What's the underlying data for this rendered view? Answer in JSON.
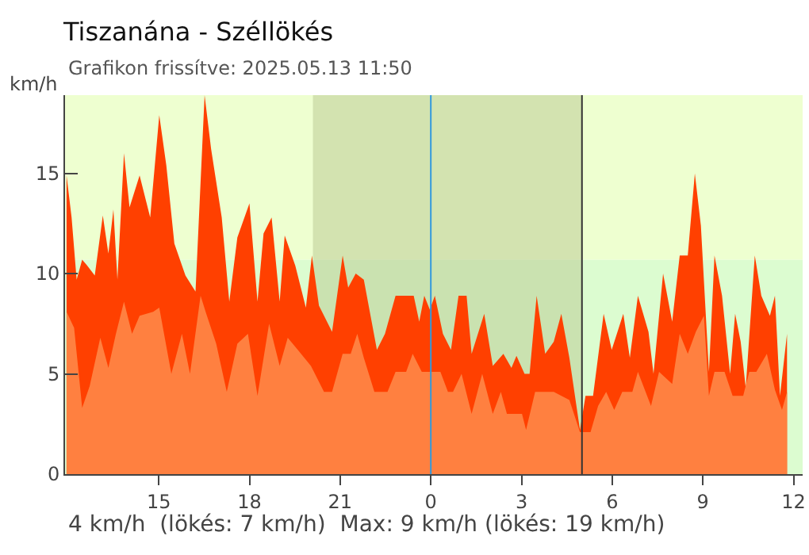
{
  "chart_data": {
    "type": "area",
    "title": "Tiszanána - Széllökés",
    "subtitle": "Grafikon frissítve: 2025.05.13 11:50",
    "ylabel": "km/h",
    "annotations": [
      "4 km/h  (lökés: 7 km/h)  Max: 9 km/h (lökés: 19 km/h)"
    ],
    "series": [
      {
        "color": "#ff4000",
        "x": [
          "2025-05-12T11:57",
          "2025-05-12T12:07",
          "2025-05-12T12:17",
          "2025-05-12T12:28",
          "2025-05-12T12:38",
          "2025-05-12T12:53",
          "2025-05-12T13:09",
          "2025-05-12T13:20",
          "2025-05-12T13:30",
          "2025-05-12T13:38",
          "2025-05-12T13:51",
          "2025-05-12T14:02",
          "2025-05-12T14:22",
          "2025-05-12T14:43",
          "2025-05-12T15:01",
          "2025-05-12T15:15",
          "2025-05-12T15:31",
          "2025-05-12T15:53",
          "2025-05-12T16:13",
          "2025-05-12T16:31",
          "2025-05-12T16:44",
          "2025-05-12T17:05",
          "2025-05-12T17:20",
          "2025-05-12T17:36",
          "2025-05-12T18:00",
          "2025-05-12T18:16",
          "2025-05-12T18:28",
          "2025-05-12T18:44",
          "2025-05-12T19:00",
          "2025-05-12T19:10",
          "2025-05-12T19:31",
          "2025-05-12T19:52",
          "2025-05-12T20:04",
          "2025-05-12T20:18",
          "2025-05-12T20:44",
          "2025-05-12T21:05",
          "2025-05-12T21:16",
          "2025-05-12T21:31",
          "2025-05-12T21:47",
          "2025-05-12T22:13",
          "2025-05-12T22:29",
          "2025-05-12T22:50",
          "2025-05-12T23:05",
          "2025-05-12T23:26",
          "2025-05-12T23:37",
          "2025-05-12T23:47",
          "2025-05-12T23:58",
          "2025-05-13T00:08",
          "2025-05-13T00:24",
          "2025-05-13T00:40",
          "2025-05-13T00:55",
          "2025-05-13T01:11",
          "2025-05-13T01:21",
          "2025-05-13T01:46",
          "2025-05-13T02:03",
          "2025-05-13T02:24",
          "2025-05-13T02:40",
          "2025-05-13T02:50",
          "2025-05-13T03:06",
          "2025-05-13T03:16",
          "2025-05-13T03:30",
          "2025-05-13T03:47",
          "2025-05-13T04:04",
          "2025-05-13T04:19",
          "2025-05-13T04:35",
          "2025-05-13T04:56",
          "2025-05-13T05:07",
          "2025-05-13T05:22",
          "2025-05-13T05:43",
          "2025-05-13T05:59",
          "2025-05-13T06:22",
          "2025-05-13T06:35",
          "2025-05-13T06:51",
          "2025-05-13T07:12",
          "2025-05-13T07:22",
          "2025-05-13T07:41",
          "2025-05-13T07:59",
          "2025-05-13T08:14",
          "2025-05-13T08:30",
          "2025-05-13T08:44",
          "2025-05-13T08:56",
          "2025-05-13T09:12",
          "2025-05-13T09:23",
          "2025-05-13T09:38",
          "2025-05-13T09:54",
          "2025-05-13T10:04",
          "2025-05-13T10:15",
          "2025-05-13T10:25",
          "2025-05-13T10:43",
          "2025-05-13T10:56",
          "2025-05-13T11:13",
          "2025-05-13T11:23",
          "2025-05-13T11:33",
          "2025-05-13T11:47"
        ],
        "values": [
          14.9,
          12.8,
          9.7,
          10.7,
          10.4,
          9.9,
          12.9,
          11.0,
          13.2,
          9.7,
          16.0,
          13.3,
          14.9,
          12.8,
          17.9,
          15.4,
          11.5,
          9.9,
          9.1,
          18.9,
          16.2,
          12.8,
          8.6,
          11.8,
          13.5,
          8.6,
          12.0,
          12.8,
          8.6,
          11.9,
          10.4,
          8.3,
          10.9,
          8.4,
          7.1,
          10.9,
          9.3,
          10.0,
          9.7,
          6.2,
          7.0,
          8.9,
          8.9,
          8.9,
          7.6,
          8.9,
          8.2,
          8.9,
          7.0,
          6.2,
          8.9,
          8.9,
          6.0,
          8.0,
          5.4,
          6.0,
          5.3,
          5.9,
          5.0,
          5.0,
          8.9,
          6.0,
          6.6,
          8.0,
          5.8,
          2.2,
          3.9,
          3.9,
          8.0,
          6.2,
          8.0,
          5.8,
          8.9,
          7.1,
          5.0,
          10.0,
          7.6,
          10.9,
          10.9,
          15.0,
          12.4,
          5.1,
          10.9,
          8.9,
          5.0,
          8.0,
          6.6,
          4.3,
          10.9,
          8.9,
          7.9,
          8.9,
          3.9,
          7.0
        ]
      },
      {
        "color": "#ff8040",
        "x": [
          "2025-05-12T11:57",
          "2025-05-12T12:12",
          "2025-05-12T12:28",
          "2025-05-12T12:43",
          "2025-05-12T13:04",
          "2025-05-12T13:20",
          "2025-05-12T13:35",
          "2025-05-12T13:51",
          "2025-05-12T14:07",
          "2025-05-12T14:22",
          "2025-05-12T14:49",
          "2025-05-12T15:01",
          "2025-05-12T15:25",
          "2025-05-12T15:46",
          "2025-05-12T16:02",
          "2025-05-12T16:23",
          "2025-05-12T16:33",
          "2025-05-12T16:54",
          "2025-05-12T17:15",
          "2025-05-12T17:36",
          "2025-05-12T17:57",
          "2025-05-12T18:16",
          "2025-05-12T18:39",
          "2025-05-12T19:00",
          "2025-05-12T19:16",
          "2025-05-12T19:36",
          "2025-05-12T20:02",
          "2025-05-12T20:08",
          "2025-05-12T20:28",
          "2025-05-12T20:44",
          "2025-05-12T21:05",
          "2025-05-12T21:21",
          "2025-05-12T21:34",
          "2025-05-12T21:47",
          "2025-05-12T22:08",
          "2025-05-12T22:34",
          "2025-05-12T22:50",
          "2025-05-12T23:11",
          "2025-05-12T23:24",
          "2025-05-12T23:42",
          "2025-05-13T00:19",
          "2025-05-13T00:34",
          "2025-05-13T00:44",
          "2025-05-13T01:01",
          "2025-05-13T01:21",
          "2025-05-13T01:42",
          "2025-05-13T02:03",
          "2025-05-13T02:19",
          "2025-05-13T02:31",
          "2025-05-13T03:01",
          "2025-05-13T03:09",
          "2025-05-13T03:27",
          "2025-05-13T04:04",
          "2025-05-13T04:35",
          "2025-05-13T04:56",
          "2025-05-13T05:17",
          "2025-05-13T05:32",
          "2025-05-13T05:48",
          "2025-05-13T06:04",
          "2025-05-13T06:20",
          "2025-05-13T06:40",
          "2025-05-13T06:51",
          "2025-05-13T07:17",
          "2025-05-13T07:33",
          "2025-05-13T07:59",
          "2025-05-13T08:14",
          "2025-05-13T08:30",
          "2025-05-13T08:46",
          "2025-05-13T09:02",
          "2025-05-13T09:12",
          "2025-05-13T09:23",
          "2025-05-13T09:43",
          "2025-05-13T09:59",
          "2025-05-13T10:20",
          "2025-05-13T10:32",
          "2025-05-13T10:46",
          "2025-05-13T11:07",
          "2025-05-13T11:23",
          "2025-05-13T11:37",
          "2025-05-13T11:47"
        ],
        "values": [
          8.1,
          7.3,
          3.3,
          4.4,
          6.8,
          5.3,
          7.0,
          8.6,
          7.0,
          7.9,
          8.1,
          8.3,
          5.0,
          7.0,
          5.0,
          8.9,
          8.1,
          6.5,
          4.1,
          6.5,
          7.0,
          3.9,
          7.5,
          5.4,
          6.8,
          6.2,
          5.4,
          5.1,
          4.1,
          4.1,
          6.0,
          6.0,
          7.0,
          5.8,
          4.1,
          4.1,
          5.1,
          5.1,
          6.0,
          5.1,
          5.1,
          4.1,
          4.1,
          5.0,
          3.0,
          5.0,
          3.0,
          4.1,
          3.0,
          3.0,
          2.2,
          4.1,
          4.1,
          3.7,
          2.1,
          2.1,
          3.4,
          4.1,
          3.2,
          4.1,
          4.1,
          5.1,
          3.4,
          5.1,
          4.5,
          7.0,
          6.0,
          7.1,
          7.9,
          3.9,
          5.1,
          5.1,
          3.9,
          3.9,
          5.1,
          5.1,
          6.0,
          4.2,
          3.2,
          4.1
        ]
      }
    ],
    "xlim": [
      "2025-05-12T11:54",
      "2025-05-13T12:18"
    ],
    "xticks": [
      {
        "value": "2025-05-12T15:00",
        "label": "15"
      },
      {
        "value": "2025-05-12T18:00",
        "label": "18"
      },
      {
        "value": "2025-05-12T21:00",
        "label": "21"
      },
      {
        "value": "2025-05-13T00:00",
        "label": "0"
      },
      {
        "value": "2025-05-13T03:00",
        "label": "3"
      },
      {
        "value": "2025-05-13T06:00",
        "label": "6"
      },
      {
        "value": "2025-05-13T09:00",
        "label": "9"
      },
      {
        "value": "2025-05-13T12:00",
        "label": "12"
      }
    ],
    "ylim": [
      0,
      18.9
    ],
    "yticks": [
      0,
      5,
      10,
      15
    ],
    "grid": false,
    "bands": [
      {
        "axis": "y",
        "from": 0,
        "to": 10.7,
        "color": "#dcfcd0"
      },
      {
        "axis": "y",
        "from": 10.7,
        "to": 18.9,
        "color": "#eeffd0"
      },
      {
        "axis": "x",
        "from": "2025-05-12T20:06",
        "to": "2025-05-13T05:00",
        "color": "#b8c890"
      }
    ],
    "ref_lines": [
      {
        "axis": "x",
        "value": "2025-05-13T00:00",
        "color": "#3399dd"
      },
      {
        "axis": "x",
        "value": "2025-05-13T05:00",
        "color": "#333333"
      }
    ]
  }
}
